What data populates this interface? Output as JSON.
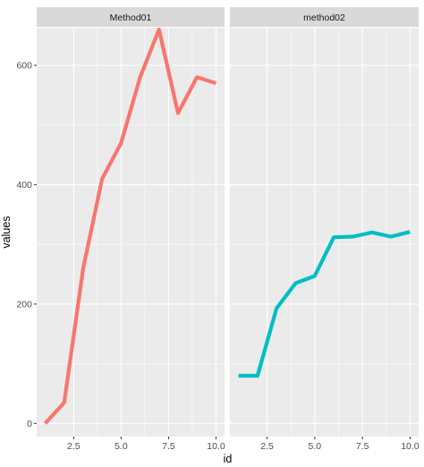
{
  "chart_data": {
    "type": "line",
    "xlabel": "id",
    "ylabel": "values",
    "xlim": [
      0.55,
      10.45
    ],
    "ylim": [
      -22,
      663
    ],
    "x_ticks": [
      2.5,
      5.0,
      7.5,
      10.0
    ],
    "x_tick_labels": [
      "2.5",
      "5.0",
      "7.5",
      "10.0"
    ],
    "y_ticks": [
      0,
      200,
      400,
      600
    ],
    "y_tick_labels": [
      "0",
      "200",
      "400",
      "600"
    ],
    "grid": true,
    "legend": "none",
    "panels": [
      {
        "name": "Method01",
        "color": "#F8766D",
        "x": [
          1,
          2,
          3,
          4,
          5,
          6,
          7,
          8,
          9,
          10
        ],
        "y": [
          0,
          35,
          260,
          410,
          470,
          580,
          660,
          520,
          580,
          570
        ]
      },
      {
        "name": "method02",
        "color": "#00BFC4",
        "x": [
          1,
          2,
          3,
          4,
          5,
          6,
          7,
          8,
          9,
          10
        ],
        "y": [
          80,
          80,
          193,
          235,
          247,
          312,
          313,
          320,
          313,
          321
        ]
      }
    ]
  },
  "colors": {
    "panel_background": "#EBEBEB",
    "strip_background": "#D9D9D9",
    "grid_major": "#FFFFFF"
  }
}
